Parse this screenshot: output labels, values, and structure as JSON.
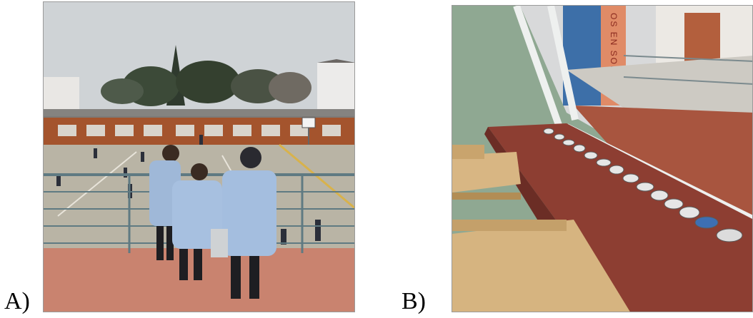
{
  "figure": {
    "panels": [
      {
        "label": "A)"
      },
      {
        "label": "B)"
      }
    ],
    "mural_text": "OS EN SORIA"
  }
}
